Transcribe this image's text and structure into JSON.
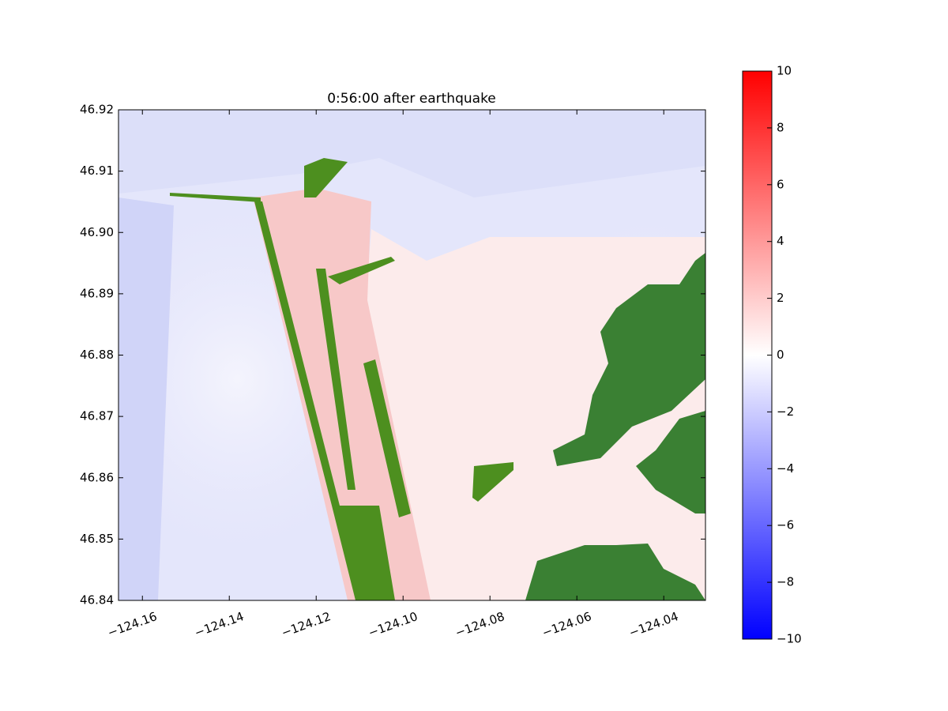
{
  "chart_data": {
    "type": "heatmap",
    "title": "0:56:00 after earthquake",
    "xlim": [
      -124.1655,
      -124.0304
    ],
    "ylim": [
      46.84,
      46.92
    ],
    "xticks": [
      {
        "value": -124.16,
        "label": "−124.16"
      },
      {
        "value": -124.14,
        "label": "−124.14"
      },
      {
        "value": -124.12,
        "label": "−124.12"
      },
      {
        "value": -124.1,
        "label": "−124.10"
      },
      {
        "value": -124.08,
        "label": "−124.08"
      },
      {
        "value": -124.06,
        "label": "−124.06"
      },
      {
        "value": -124.04,
        "label": "−124.04"
      }
    ],
    "yticks": [
      46.84,
      46.85,
      46.86,
      46.87,
      46.88,
      46.89,
      {
        "value": 46.9,
        "label": "46.90"
      },
      46.91,
      46.92
    ],
    "colorbar": {
      "lim": [
        -10,
        10
      ],
      "colors": [
        "#0000ff",
        "#ffffff",
        "#ff0000"
      ],
      "ticks": [
        {
          "value": -10,
          "label": "−10"
        },
        {
          "value": -8,
          "label": "−8"
        },
        {
          "value": -6,
          "label": "−6"
        },
        {
          "value": -4,
          "label": "−4"
        },
        {
          "value": -2,
          "label": "−2"
        },
        0,
        2,
        4,
        6,
        8,
        10
      ]
    }
  }
}
